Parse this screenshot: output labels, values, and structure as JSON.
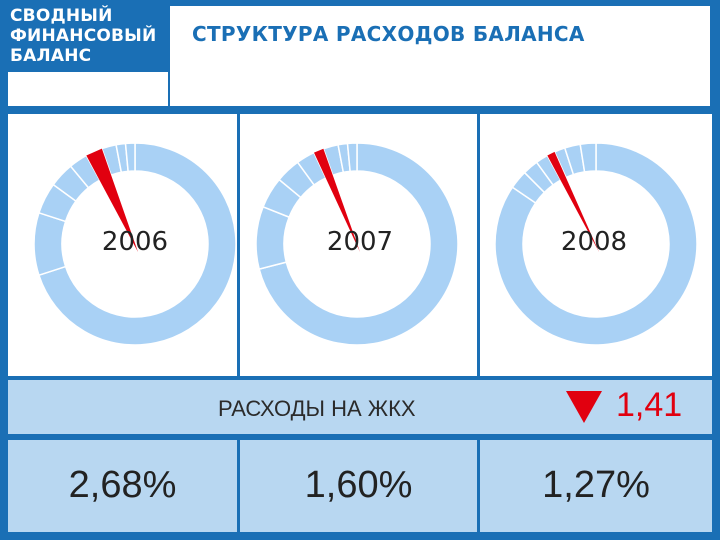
{
  "header": {
    "logo_line1": "СВОДНЫЙ",
    "logo_line2": "ФИНАНСОВЫЙ",
    "logo_line3": "БАЛАНС",
    "title": "СТРУКТУРА РАСХОДОВ БАЛАНСА"
  },
  "colors": {
    "frame": "#1a6fb5",
    "donut": "#a9d1f5",
    "highlight": "#e1000f",
    "strip": "#b8d7f1"
  },
  "strip": {
    "label": "РАСХОДЫ НА ЖКХ",
    "change_value": "1,41",
    "change_direction": "down"
  },
  "chart_data": [
    {
      "type": "pie",
      "title": "2006",
      "highlight_share": 2.68,
      "segments": [
        70.0,
        10.0,
        5.0,
        4.0,
        3.0,
        2.68,
        2.32,
        1.5,
        1.5
      ]
    },
    {
      "type": "pie",
      "title": "2007",
      "highlight_share": 1.6,
      "segments": [
        71.0,
        10.0,
        5.0,
        4.0,
        3.0,
        1.6,
        2.4,
        1.5,
        1.5
      ]
    },
    {
      "type": "pie",
      "title": "2008",
      "highlight_share": 1.27,
      "segments": [
        84.5,
        3.0,
        2.5,
        2.0,
        1.27,
        1.73,
        2.5,
        2.5
      ]
    }
  ],
  "percentages": [
    "2,68%",
    "1,60%",
    "1,27%"
  ]
}
